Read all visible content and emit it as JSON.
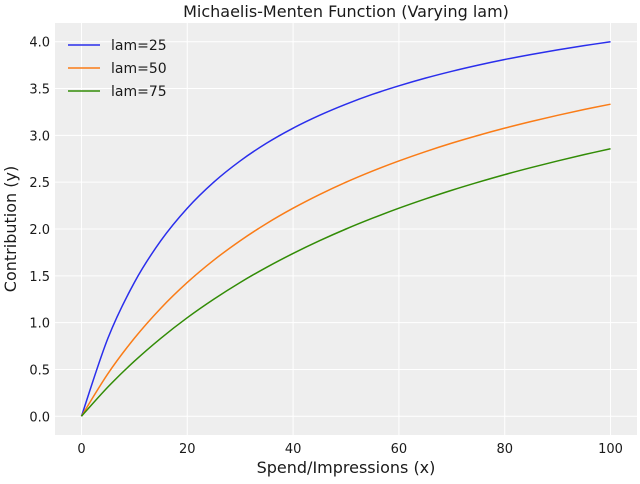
{
  "chart_data": {
    "type": "line",
    "title": "Michaelis-Menten Function (Varying lam)",
    "xlabel": "Spend/Impressions (x)",
    "ylabel": "Contribution (y)",
    "xlim": [
      -5,
      105
    ],
    "ylim": [
      -0.2,
      4.2
    ],
    "xticks": [
      0,
      20,
      40,
      60,
      80,
      100
    ],
    "xtick_labels": [
      "0",
      "20",
      "40",
      "60",
      "80",
      "100"
    ],
    "yticks": [
      0,
      0.5,
      1,
      1.5,
      2,
      2.5,
      3,
      3.5,
      4
    ],
    "ytick_labels": [
      "0.0",
      "0.5",
      "1.0",
      "1.5",
      "2.0",
      "2.5",
      "3.0",
      "3.5",
      "4.0"
    ],
    "grid": true,
    "legend_position": "top-left",
    "background": "#eeeeee",
    "x": [
      0,
      5,
      10,
      15,
      20,
      25,
      30,
      35,
      40,
      45,
      50,
      55,
      60,
      65,
      70,
      75,
      80,
      85,
      90,
      95,
      100
    ],
    "series": [
      {
        "name": "lam=25",
        "color": "#2a2eec",
        "values": [
          0,
          0.833,
          1.429,
          1.875,
          2.222,
          2.5,
          2.727,
          2.917,
          3.077,
          3.214,
          3.333,
          3.438,
          3.529,
          3.611,
          3.684,
          3.75,
          3.81,
          3.864,
          3.913,
          3.958,
          4.0
        ]
      },
      {
        "name": "lam=50",
        "color": "#fa7c17",
        "values": [
          0,
          0.455,
          0.833,
          1.154,
          1.429,
          1.667,
          1.875,
          2.059,
          2.222,
          2.368,
          2.5,
          2.619,
          2.727,
          2.826,
          2.917,
          3.0,
          3.077,
          3.148,
          3.214,
          3.276,
          3.333
        ]
      },
      {
        "name": "lam=75",
        "color": "#328c06",
        "values": [
          0,
          0.3125,
          0.588,
          0.833,
          1.053,
          1.25,
          1.429,
          1.591,
          1.739,
          1.875,
          2.0,
          2.115,
          2.222,
          2.321,
          2.414,
          2.5,
          2.581,
          2.656,
          2.727,
          2.794,
          2.857
        ]
      }
    ]
  }
}
